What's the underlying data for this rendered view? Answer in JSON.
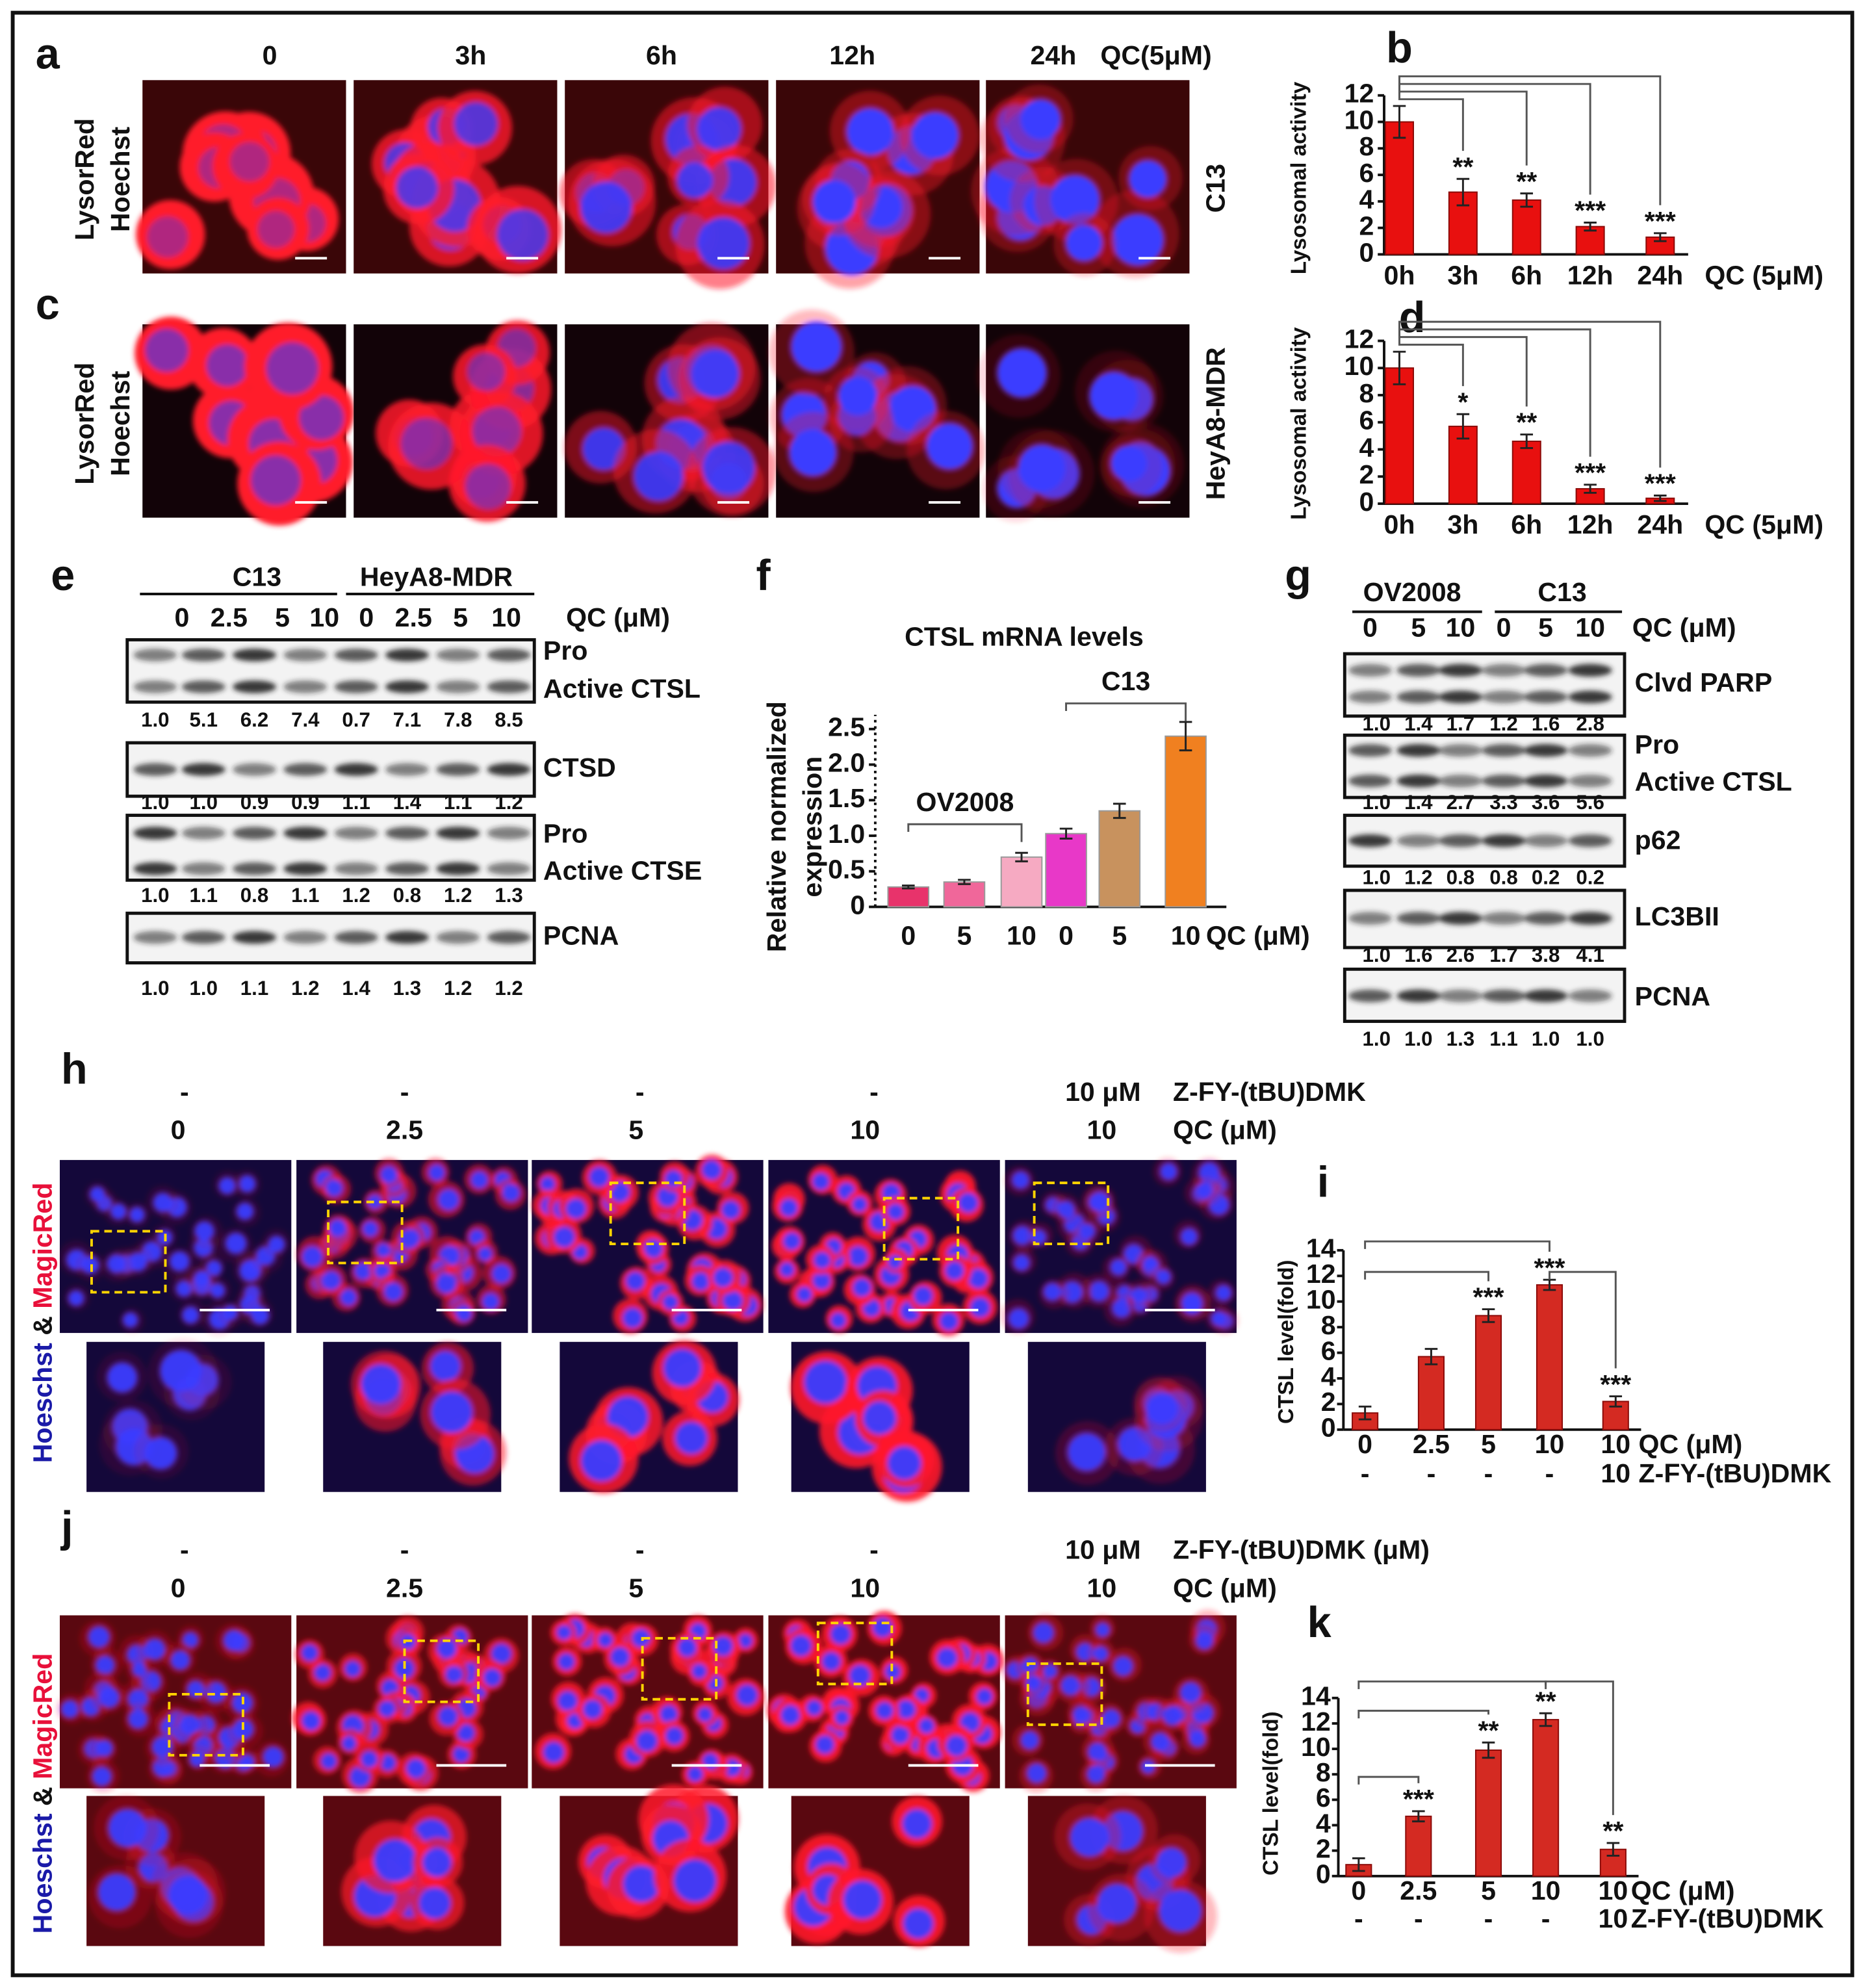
{
  "panels": {
    "a": {
      "label": "a",
      "times": [
        "0",
        "3h",
        "6h",
        "12h",
        "24h"
      ],
      "treatment": "QC(5μM)",
      "stain": [
        "LysorRed",
        "Hoechst"
      ],
      "cell_line": "C13"
    },
    "c": {
      "label": "c",
      "stain": [
        "LysorRed",
        "Hoechst"
      ],
      "cell_line": "HeyA8-MDR"
    },
    "e": {
      "label": "e",
      "groups": [
        "C13",
        "HeyA8-MDR"
      ],
      "lanes": [
        "0",
        "2.5",
        "5",
        "10",
        "0",
        "2.5",
        "5",
        "10"
      ],
      "treatment": "QC (μM)",
      "blots": [
        {
          "labels": [
            "Pro",
            "Active CTSL"
          ],
          "quant": [
            "1.0",
            "5.1",
            "6.2",
            "7.4",
            "0.7",
            "7.1",
            "7.8",
            "8.5"
          ]
        },
        {
          "labels": [
            "CTSD"
          ],
          "quant": [
            "1.0",
            "1.0",
            "0.9",
            "0.9",
            "1.1",
            "1.4",
            "1.1",
            "1.2"
          ]
        },
        {
          "labels": [
            "Pro",
            "Active CTSE"
          ],
          "quant": [
            "1.0",
            "1.1",
            "0.8",
            "1.1",
            "1.2",
            "0.8",
            "1.2",
            "1.3"
          ]
        },
        {
          "labels": [
            "PCNA"
          ],
          "quant": [
            "1.0",
            "1.0",
            "1.1",
            "1.2",
            "1.4",
            "1.3",
            "1.2",
            "1.2"
          ]
        }
      ]
    },
    "g": {
      "label": "g",
      "groups": [
        "OV2008",
        "C13"
      ],
      "lanes": [
        "0",
        "5",
        "10",
        "0",
        "5",
        "10"
      ],
      "treatment": "QC (μM)",
      "blots": [
        {
          "labels": [
            "Clvd PARP"
          ],
          "quant": [
            "1.0",
            "1.4",
            "1.7",
            "1.2",
            "1.6",
            "2.8"
          ]
        },
        {
          "labels": [
            "Pro",
            "Active CTSL"
          ],
          "quant": [
            "1.0",
            "1.4",
            "2.7",
            "3.3",
            "3.6",
            "5.6"
          ]
        },
        {
          "labels": [
            "p62"
          ],
          "quant": [
            "1.0",
            "1.2",
            "0.8",
            "0.8",
            "0.2",
            "0.2"
          ]
        },
        {
          "labels": [
            "LC3BII"
          ],
          "quant": [
            "1.0",
            "1.6",
            "2.6",
            "1.7",
            "3.8",
            "4.1"
          ]
        },
        {
          "labels": [
            "PCNA"
          ],
          "quant": [
            "1.0",
            "1.0",
            "1.3",
            "1.1",
            "1.0",
            "1.0"
          ]
        }
      ]
    },
    "h": {
      "label": "h",
      "inhibitor": [
        "-",
        "-",
        "-",
        "-",
        "10 μM"
      ],
      "inhibitor_name": "Z-FY-(tBU)DMK",
      "qc": [
        "0",
        "2.5",
        "5",
        "10",
        "10"
      ],
      "qc_label": "QC (μM)",
      "stain": [
        "Hoeschst",
        "&",
        "MagicRed"
      ]
    },
    "j": {
      "label": "j",
      "inhibitor": [
        "-",
        "-",
        "-",
        "-",
        "10 μM"
      ],
      "inhibitor_name": "Z-FY-(tBU)DMK (μM)",
      "qc": [
        "0",
        "2.5",
        "5",
        "10",
        "10"
      ],
      "qc_label": "QC (μM)",
      "stain": [
        "Hoeschst",
        "&",
        "MagicRed"
      ]
    }
  },
  "chart_data": [
    {
      "type": "bar",
      "panel": "b",
      "ylabel": "Lysosomal activity",
      "xlabel": "QC (5μM)",
      "categories": [
        "0h",
        "3h",
        "6h",
        "12h",
        "24h"
      ],
      "values": [
        10,
        4.7,
        4.1,
        2.1,
        1.3
      ],
      "errors": [
        1.2,
        1.0,
        0.5,
        0.3,
        0.3
      ],
      "significance": [
        null,
        "**",
        "**",
        "***",
        "***"
      ],
      "color": "#e8100f",
      "ylim": [
        0,
        12
      ],
      "yticks": [
        0,
        2,
        4,
        6,
        8,
        10,
        12
      ]
    },
    {
      "type": "bar",
      "panel": "d",
      "ylabel": "Lysosomal activity",
      "xlabel": "QC (5μM)",
      "categories": [
        "0h",
        "3h",
        "6h",
        "12h",
        "24h"
      ],
      "values": [
        10,
        5.7,
        4.6,
        1.1,
        0.4
      ],
      "errors": [
        1.2,
        0.9,
        0.5,
        0.3,
        0.2
      ],
      "significance": [
        null,
        "*",
        "**",
        "***",
        "***"
      ],
      "color": "#e8100f",
      "ylim": [
        0,
        12
      ],
      "yticks": [
        0,
        2,
        4,
        6,
        8,
        10,
        12
      ]
    },
    {
      "type": "bar",
      "panel": "f",
      "title": "CTSL mRNA levels",
      "ylabel": [
        "Relative normalized",
        "expression"
      ],
      "xlabel": "QC (μM)",
      "categories": [
        "0",
        "5",
        "10",
        "0",
        "5",
        "10"
      ],
      "groups": [
        "OV2008",
        "C13"
      ],
      "values": [
        0.28,
        0.35,
        0.7,
        1.03,
        1.35,
        2.4
      ],
      "errors": [
        0.02,
        0.03,
        0.06,
        0.07,
        0.1,
        0.2
      ],
      "colors": [
        "#e8336b",
        "#f0679a",
        "#f6aac2",
        "#e838c8",
        "#c8925e",
        "#f08020"
      ],
      "ylim": [
        0,
        2.7
      ],
      "yticks": [
        0,
        0.5,
        {
          "value": 1,
          "label": "1.0"
        },
        1.5,
        {
          "value": 2,
          "label": "2.0"
        },
        2.5
      ]
    },
    {
      "type": "bar",
      "panel": "i",
      "ylabel": "CTSL level(fold)",
      "xlabel": "QC (μM)",
      "xlabel2": "Z-FY-(tBU)DMK",
      "categories": [
        "0",
        "2.5",
        "5",
        "10",
        "10"
      ],
      "categories2": [
        "-",
        "-",
        "-",
        "-",
        "10"
      ],
      "values": [
        1.3,
        5.7,
        8.9,
        11.3,
        2.2
      ],
      "errors": [
        0.5,
        0.6,
        0.5,
        0.4,
        0.4
      ],
      "significance": [
        null,
        null,
        "***",
        "***",
        "***"
      ],
      "color": "#d42a22",
      "ylim": [
        0,
        14
      ],
      "yticks": [
        0,
        2,
        4,
        6,
        8,
        10,
        12,
        14
      ]
    },
    {
      "type": "bar",
      "panel": "k",
      "ylabel": "CTSL level(fold)",
      "xlabel": "QC (μM)",
      "xlabel2": "Z-FY-(tBU)DMK",
      "categories": [
        "0",
        "2.5",
        "5",
        "10",
        "10"
      ],
      "categories2": [
        "-",
        "-",
        "-",
        "-",
        "10"
      ],
      "values": [
        0.9,
        4.7,
        9.9,
        12.3,
        2.1
      ],
      "errors": [
        0.5,
        0.4,
        0.6,
        0.5,
        0.5
      ],
      "significance": [
        null,
        "***",
        "**",
        "**",
        "**"
      ],
      "color": "#d42a22",
      "ylim": [
        0,
        14
      ],
      "yticks": [
        0,
        2,
        4,
        6,
        8,
        10,
        12,
        14
      ]
    }
  ]
}
